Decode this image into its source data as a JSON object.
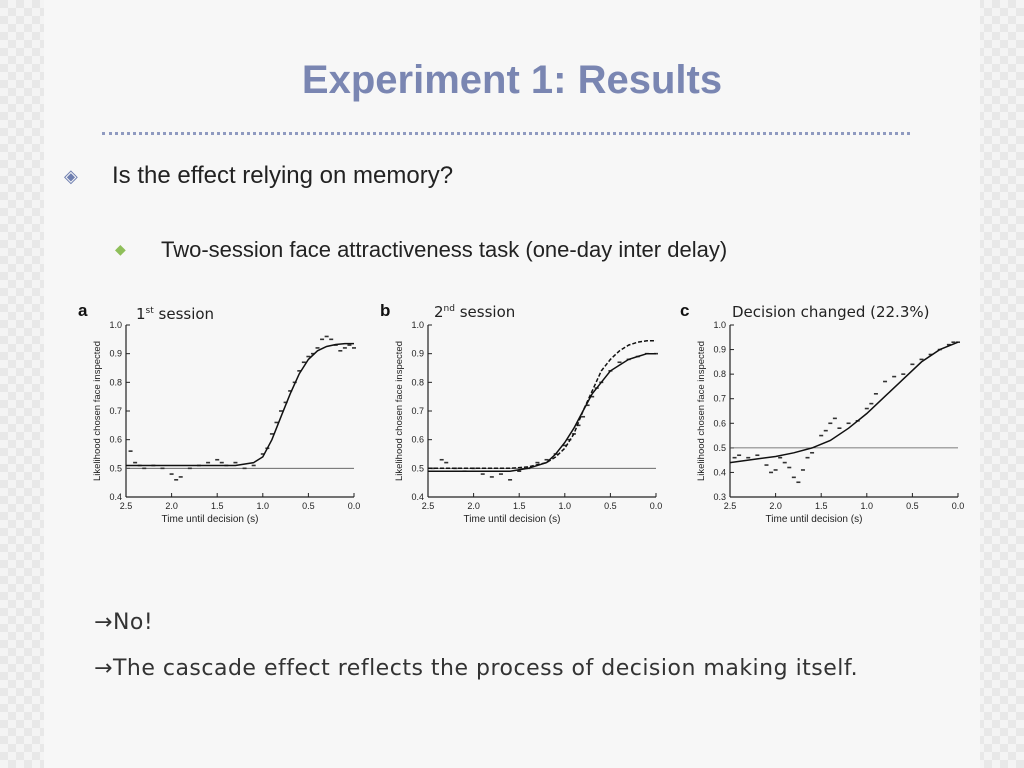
{
  "slide": {
    "title": "Experiment 1: Results",
    "bullets": [
      {
        "icon": "diamond-outline-icon",
        "text": "Is the effect relying on memory?"
      },
      {
        "icon": "diamond-filled-icon",
        "text": "Two-session face attractiveness task (one-day inter delay)"
      }
    ],
    "conclusions": [
      {
        "icon": "arrow-right-icon",
        "arrow": "→",
        "text": "No!"
      },
      {
        "icon": "arrow-right-icon",
        "arrow": "→",
        "text": "The cascade effect reflects the process of decision making itself."
      }
    ],
    "colors": {
      "title": "#7a86b2",
      "rule": "#8f9ac0",
      "bullet2": "#8fbf5a"
    }
  },
  "chart_data": [
    {
      "type": "line",
      "panel_letter": "a",
      "caption_prefix": "1",
      "caption_sup": "st",
      "caption_suffix": " session",
      "xlabel": "Time until decision (s)",
      "ylabel": "Likelihood chosen face inspected",
      "xlim": [
        2.5,
        0.0
      ],
      "ylim": [
        0.4,
        1.0
      ],
      "xticks": [
        "2.5",
        "2.0",
        "1.5",
        "1.0",
        "0.5",
        "0.0"
      ],
      "yticks": [
        "0.4",
        "0.5",
        "0.6",
        "0.7",
        "0.8",
        "0.9",
        "1.0"
      ],
      "reference_line": 0.5,
      "series": [
        {
          "style": "solid",
          "x": [
            2.5,
            2.2,
            1.9,
            1.6,
            1.3,
            1.1,
            1.0,
            0.9,
            0.8,
            0.7,
            0.6,
            0.5,
            0.4,
            0.3,
            0.2,
            0.1,
            0.0
          ],
          "y": [
            0.51,
            0.51,
            0.51,
            0.51,
            0.51,
            0.52,
            0.54,
            0.6,
            0.68,
            0.76,
            0.83,
            0.88,
            0.91,
            0.925,
            0.932,
            0.935,
            0.935
          ]
        }
      ],
      "points": [
        {
          "style": "scatter",
          "x": [
            2.45,
            2.4,
            2.35,
            2.3,
            2.2,
            2.1,
            2.0,
            1.95,
            1.9,
            1.8,
            1.7,
            1.6,
            1.5,
            1.45,
            1.4,
            1.3,
            1.2,
            1.1,
            1.0,
            0.95,
            0.9,
            0.85,
            0.8,
            0.75,
            0.7,
            0.65,
            0.6,
            0.55,
            0.5,
            0.45,
            0.4,
            0.35,
            0.3,
            0.25,
            0.2,
            0.15,
            0.1,
            0.05,
            0.0
          ],
          "y": [
            0.56,
            0.52,
            0.51,
            0.5,
            0.51,
            0.5,
            0.48,
            0.46,
            0.47,
            0.5,
            0.51,
            0.52,
            0.53,
            0.52,
            0.51,
            0.52,
            0.5,
            0.51,
            0.55,
            0.57,
            0.62,
            0.66,
            0.7,
            0.73,
            0.77,
            0.8,
            0.84,
            0.87,
            0.89,
            0.9,
            0.92,
            0.95,
            0.96,
            0.95,
            0.93,
            0.91,
            0.92,
            0.93,
            0.92
          ]
        }
      ]
    },
    {
      "type": "line",
      "panel_letter": "b",
      "caption_prefix": "2",
      "caption_sup": "nd",
      "caption_suffix": " session",
      "xlabel": "Time until decision (s)",
      "ylabel": "Likelihood chosen face inspected",
      "xlim": [
        2.5,
        0.0
      ],
      "ylim": [
        0.4,
        1.0
      ],
      "xticks": [
        "2.5",
        "2.0",
        "1.5",
        "1.0",
        "0.5",
        "0.0"
      ],
      "yticks": [
        "0.4",
        "0.5",
        "0.6",
        "0.7",
        "0.8",
        "0.9",
        "1.0"
      ],
      "reference_line": 0.5,
      "series": [
        {
          "style": "solid",
          "x": [
            2.5,
            2.2,
            1.9,
            1.6,
            1.4,
            1.2,
            1.1,
            1.0,
            0.9,
            0.8,
            0.7,
            0.6,
            0.5,
            0.4,
            0.3,
            0.2,
            0.1,
            0.0
          ],
          "y": [
            0.49,
            0.49,
            0.49,
            0.49,
            0.5,
            0.52,
            0.55,
            0.59,
            0.64,
            0.7,
            0.76,
            0.8,
            0.84,
            0.86,
            0.88,
            0.89,
            0.9,
            0.9
          ]
        },
        {
          "style": "dashed",
          "x": [
            2.5,
            2.2,
            1.9,
            1.6,
            1.4,
            1.2,
            1.1,
            1.0,
            0.9,
            0.8,
            0.7,
            0.6,
            0.5,
            0.4,
            0.3,
            0.2,
            0.1,
            0.0
          ],
          "y": [
            0.5,
            0.5,
            0.5,
            0.5,
            0.505,
            0.52,
            0.54,
            0.57,
            0.62,
            0.7,
            0.77,
            0.84,
            0.88,
            0.91,
            0.93,
            0.94,
            0.945,
            0.945
          ]
        }
      ],
      "points": [
        {
          "style": "scatter",
          "x": [
            2.45,
            2.35,
            2.3,
            2.2,
            2.1,
            2.0,
            1.9,
            1.8,
            1.7,
            1.6,
            1.5,
            1.4,
            1.3,
            1.2,
            1.1,
            1.0,
            0.95,
            0.9,
            0.85,
            0.8,
            0.75,
            0.7,
            0.65,
            0.6,
            0.5,
            0.4,
            0.3,
            0.2,
            0.1,
            0.0
          ],
          "y": [
            0.5,
            0.53,
            0.52,
            0.5,
            0.49,
            0.5,
            0.48,
            0.47,
            0.48,
            0.46,
            0.49,
            0.5,
            0.52,
            0.53,
            0.55,
            0.58,
            0.6,
            0.62,
            0.65,
            0.68,
            0.72,
            0.75,
            0.78,
            0.8,
            0.84,
            0.87,
            0.88,
            0.89,
            0.9,
            0.9
          ]
        }
      ]
    },
    {
      "type": "line",
      "panel_letter": "c",
      "caption_prefix": "Decision changed (22.3%)",
      "caption_sup": "",
      "caption_suffix": "",
      "xlabel": "Time until decision (s)",
      "ylabel": "Likelihood chosen face inspected",
      "xlim": [
        2.5,
        0.0
      ],
      "ylim": [
        0.3,
        1.0
      ],
      "xticks": [
        "2.5",
        "2.0",
        "1.5",
        "1.0",
        "0.5",
        "0.0"
      ],
      "yticks": [
        "0.3",
        "0.4",
        "0.5",
        "0.6",
        "0.7",
        "0.8",
        "0.9",
        "1.0"
      ],
      "reference_line": 0.5,
      "series": [
        {
          "style": "solid",
          "x": [
            2.5,
            2.2,
            2.0,
            1.8,
            1.6,
            1.4,
            1.2,
            1.0,
            0.8,
            0.6,
            0.4,
            0.2,
            0.0
          ],
          "y": [
            0.44,
            0.455,
            0.465,
            0.48,
            0.5,
            0.53,
            0.58,
            0.64,
            0.71,
            0.78,
            0.85,
            0.9,
            0.93
          ]
        }
      ],
      "points": [
        {
          "style": "scatter",
          "x": [
            2.45,
            2.4,
            2.3,
            2.2,
            2.1,
            2.05,
            2.0,
            1.95,
            1.9,
            1.85,
            1.8,
            1.75,
            1.7,
            1.65,
            1.6,
            1.5,
            1.45,
            1.4,
            1.35,
            1.3,
            1.2,
            1.1,
            1.0,
            0.95,
            0.9,
            0.8,
            0.7,
            0.6,
            0.5,
            0.4,
            0.3,
            0.2,
            0.1,
            0.05,
            0.0
          ],
          "y": [
            0.46,
            0.47,
            0.46,
            0.47,
            0.43,
            0.4,
            0.41,
            0.46,
            0.44,
            0.42,
            0.38,
            0.36,
            0.41,
            0.46,
            0.48,
            0.55,
            0.57,
            0.6,
            0.62,
            0.58,
            0.6,
            0.61,
            0.66,
            0.68,
            0.72,
            0.77,
            0.79,
            0.8,
            0.84,
            0.86,
            0.88,
            0.9,
            0.92,
            0.93,
            0.93
          ]
        }
      ]
    }
  ]
}
